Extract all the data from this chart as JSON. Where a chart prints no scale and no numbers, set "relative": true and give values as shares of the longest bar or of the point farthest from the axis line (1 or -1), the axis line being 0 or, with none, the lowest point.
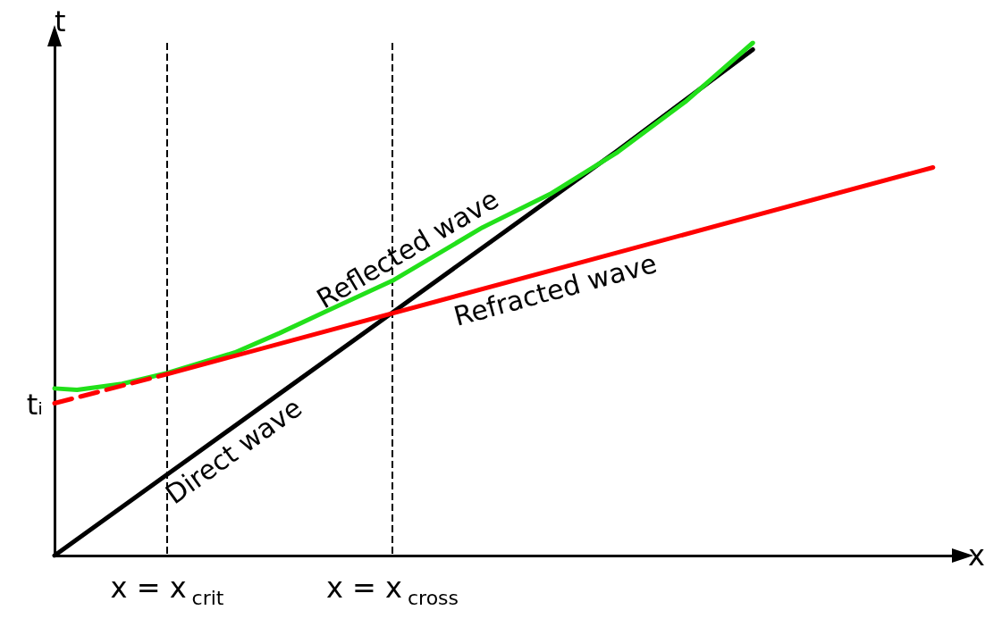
{
  "chart_data": {
    "type": "line",
    "relative": true,
    "xlabel": "x",
    "ylabel": "t",
    "categories": [
      null,
      null,
      null,
      null,
      null,
      "x = x$_{crit}$",
      null,
      null,
      null,
      null,
      null,
      null,
      null,
      null,
      null,
      "x = x$_{cross}$",
      null,
      null,
      null,
      null,
      null,
      null,
      null,
      null,
      null,
      null,
      null,
      null,
      null,
      null,
      null,
      null,
      null,
      null,
      null,
      null,
      null,
      null,
      null,
      null,
      null
    ],
    "marker": "none",
    "grid": "x",
    "series": [
      {
        "name": "Direct wave",
        "color": "#000000",
        "values": [
          0,
          null,
          null,
          null,
          null,
          0.158,
          null,
          null,
          null,
          null,
          0.316,
          null,
          null,
          null,
          null,
          0.474,
          null,
          null,
          null,
          null,
          0.632,
          null,
          null,
          null,
          null,
          0.79,
          null,
          null,
          null,
          null,
          null,
          0.987,
          null,
          null,
          null,
          null,
          null,
          null,
          null,
          null,
          null
        ]
      },
      {
        "name": "Reflected wave",
        "color": "#22e01a",
        "values": [
          0.326,
          0.323,
          null,
          0.335,
          null,
          0.356,
          null,
          null,
          0.396,
          null,
          0.434,
          null,
          0.475,
          null,
          null,
          0.536,
          null,
          null,
          null,
          0.64,
          null,
          null,
          0.705,
          null,
          null,
          0.787,
          null,
          null,
          0.885,
          null,
          null,
          1.0,
          null,
          null,
          null,
          null,
          null,
          null,
          null,
          null,
          null
        ]
      },
      {
        "name": "Refracted wave",
        "color": "#ff0000",
        "values": [
          null,
          null,
          null,
          null,
          null,
          0.354,
          null,
          null,
          null,
          null,
          null,
          null,
          null,
          null,
          null,
          null,
          null,
          null,
          null,
          null,
          null,
          null,
          null,
          null,
          null,
          null,
          null,
          null,
          null,
          null,
          null,
          null,
          null,
          null,
          null,
          null,
          null,
          null,
          null,
          0.757,
          null
        ]
      },
      {
        "color": "#ff0000",
        "line_style": "dashed",
        "values": [
          0.297,
          null,
          null,
          null,
          null,
          0.354,
          null,
          null,
          null,
          null,
          null,
          null,
          null,
          null,
          null,
          null,
          null,
          null,
          null,
          null,
          null,
          null,
          null,
          null,
          null,
          null,
          null,
          null,
          null,
          null,
          null,
          null,
          null,
          null,
          null,
          null,
          null,
          null,
          null,
          null,
          null
        ]
      }
    ],
    "annotations": [
      "tᵢ"
    ]
  }
}
